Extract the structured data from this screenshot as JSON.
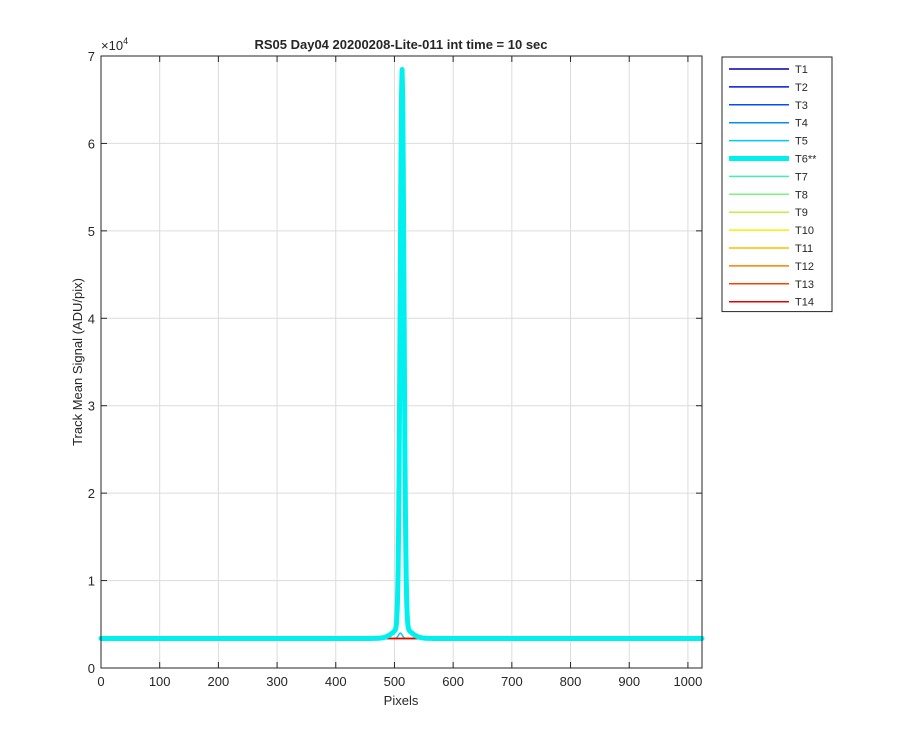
{
  "chart_data": {
    "type": "line",
    "title": "RS05 Day04 20200208-Lite-011 int time = 10 sec",
    "xlabel": "Pixels",
    "ylabel": "Track Mean Signal (ADU/pix)",
    "y_exponent_label": "×10",
    "y_exponent_power": "4",
    "xlim": [
      0,
      1024
    ],
    "ylim": [
      0,
      70000
    ],
    "y_scale": 10000,
    "xticks": [
      0,
      100,
      200,
      300,
      400,
      500,
      600,
      700,
      800,
      900,
      1000
    ],
    "yticks": [
      0,
      1,
      2,
      3,
      4,
      5,
      6,
      7
    ],
    "grid": true,
    "legend_position": "outside-right",
    "series": [
      {
        "name": "T1",
        "color": "#0000a8",
        "baseline": 3380,
        "peak_x": 512,
        "peak": 0,
        "width": 1.5
      },
      {
        "name": "T2",
        "color": "#0018d8",
        "baseline": 3380,
        "peak_x": 512,
        "peak": 0,
        "width": 1.5
      },
      {
        "name": "T3",
        "color": "#0050f0",
        "baseline": 3380,
        "peak_x": 512,
        "peak": 0,
        "width": 1.5
      },
      {
        "name": "T4",
        "color": "#0090f8",
        "baseline": 3380,
        "peak_x": 512,
        "peak": 0,
        "width": 1.5
      },
      {
        "name": "T5",
        "color": "#00c8ff",
        "baseline": 3380,
        "peak_x": 510,
        "peak": 600,
        "width": 1.5
      },
      {
        "name": "T6**",
        "color": "#00f0f0",
        "baseline": 3380,
        "peak_x": 513,
        "peak": 63800,
        "width": 5
      },
      {
        "name": "T7",
        "color": "#40f0b0",
        "baseline": 3380,
        "peak_x": 512,
        "peak": 0,
        "width": 1.5
      },
      {
        "name": "T8",
        "color": "#80f080",
        "baseline": 3380,
        "peak_x": 512,
        "peak": 0,
        "width": 1.5
      },
      {
        "name": "T9",
        "color": "#c0f040",
        "baseline": 3380,
        "peak_x": 512,
        "peak": 0,
        "width": 1.5
      },
      {
        "name": "T10",
        "color": "#f8f000",
        "baseline": 3380,
        "peak_x": 512,
        "peak": 0,
        "width": 1.5
      },
      {
        "name": "T11",
        "color": "#f8c000",
        "baseline": 3380,
        "peak_x": 512,
        "peak": 0,
        "width": 1.5
      },
      {
        "name": "T12",
        "color": "#f88000",
        "baseline": 3380,
        "peak_x": 512,
        "peak": 0,
        "width": 1.5
      },
      {
        "name": "T13",
        "color": "#f84000",
        "baseline": 3380,
        "peak_x": 512,
        "peak": 0,
        "width": 1.5
      },
      {
        "name": "T14",
        "color": "#e80000",
        "baseline": 3380,
        "peak_x": 512,
        "peak": 0,
        "width": 1.5
      }
    ]
  }
}
